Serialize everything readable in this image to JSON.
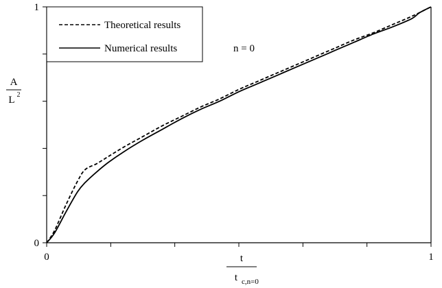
{
  "chart_data": {
    "type": "line",
    "xlim": [
      0,
      1
    ],
    "ylim": [
      0,
      1
    ],
    "x_ticks": [
      "0",
      "1"
    ],
    "y_ticks": [
      "0",
      "1"
    ],
    "x_minor_ticks": [
      0.1667,
      0.3333,
      0.5,
      0.6667,
      0.8333
    ],
    "y_minor_ticks": [
      0.2,
      0.4,
      0.6,
      0.8
    ],
    "xlabel": {
      "numerator": "t",
      "denominator_main": "t",
      "denominator_sub": "c,n=0"
    },
    "ylabel": {
      "numerator": "A",
      "denominator_main": "L",
      "denominator_sup": "2"
    },
    "annotation": "n = 0",
    "grid": false,
    "legend_position": "top-left",
    "series": [
      {
        "name": "Theoretical results",
        "style": "dashed",
        "color": "#000000",
        "x": [
          0,
          0.02,
          0.05,
          0.08,
          0.1,
          0.13,
          0.16,
          0.2,
          0.25,
          0.3,
          0.35,
          0.4,
          0.45,
          0.5,
          0.55,
          0.6,
          0.65,
          0.7,
          0.75,
          0.8,
          0.85,
          0.9,
          0.95,
          1.0
        ],
        "y": [
          0,
          0.05,
          0.16,
          0.26,
          0.31,
          0.335,
          0.365,
          0.405,
          0.45,
          0.495,
          0.535,
          0.575,
          0.61,
          0.65,
          0.685,
          0.72,
          0.755,
          0.79,
          0.825,
          0.86,
          0.89,
          0.925,
          0.96,
          1.0
        ]
      },
      {
        "name": "Numerical results",
        "style": "solid",
        "color": "#000000",
        "x": [
          0,
          0.02,
          0.05,
          0.08,
          0.1,
          0.13,
          0.16,
          0.2,
          0.25,
          0.3,
          0.35,
          0.4,
          0.45,
          0.5,
          0.55,
          0.6,
          0.65,
          0.7,
          0.75,
          0.8,
          0.85,
          0.9,
          0.95,
          0.97,
          1.0
        ],
        "y": [
          0,
          0.04,
          0.13,
          0.215,
          0.255,
          0.3,
          0.34,
          0.385,
          0.435,
          0.48,
          0.525,
          0.565,
          0.6,
          0.64,
          0.675,
          0.71,
          0.745,
          0.78,
          0.815,
          0.85,
          0.885,
          0.915,
          0.95,
          0.975,
          1.0
        ]
      }
    ]
  }
}
